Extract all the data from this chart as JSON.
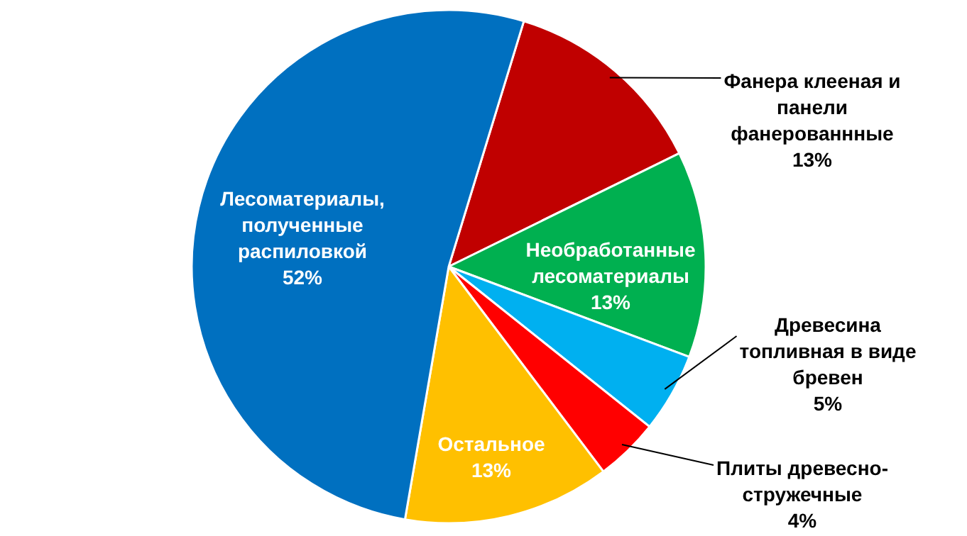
{
  "chart_data": {
    "type": "pie",
    "categories": [
      "Фанера клееная и панели фанерованнные",
      "Необработанные лесоматериалы",
      "Древесина топливная в виде бревен",
      "Плиты древесно-стружечные",
      "Остальное",
      "Лесоматериалы, полученные распиловкой"
    ],
    "values": [
      13,
      13,
      5,
      4,
      13,
      52
    ],
    "value_labels": [
      "13%",
      "13%",
      "5%",
      "4%",
      "13%",
      "52%"
    ],
    "colors": [
      "#c00000",
      "#00b050",
      "#00b0f0",
      "#ff0000",
      "#ffc000",
      "#0070c0"
    ]
  }
}
